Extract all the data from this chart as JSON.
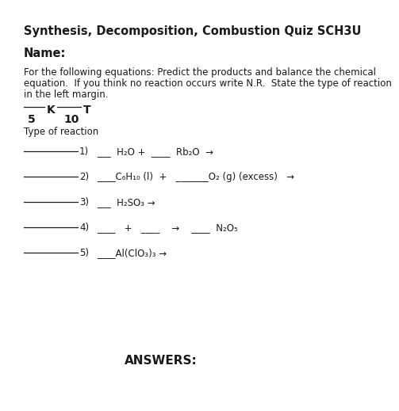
{
  "title": "Synthesis, Decomposition, Combustion Quiz SCH3U",
  "name_label": "Name:",
  "instructions_line1": "For the following equations: Predict the products and balance the chemical",
  "instructions_line2": "equation.  If you think no reaction occurs write N.R.  State the type of reaction",
  "instructions_line3": "in the left margin.",
  "scoring_K": "K",
  "scoring_T": "T",
  "scoring_val_K": "5",
  "scoring_val_T": "10",
  "type_of_reaction": "Type of reaction",
  "q1_num": "1)",
  "q1_eq": "___  H₂O +  ____  Rb₂O  →",
  "q2_num": "2)",
  "q2_eq": "____C₆H₁₀ (l)  +   _______O₂ (g) (excess)   →",
  "q3_num": "3)",
  "q3_eq": "___  H₂SO₃ →",
  "q4_num": "4)",
  "q4_eq": "____   +   ____    →    ____  N₂O₅",
  "q5_num": "5)",
  "q5_eq": "____Al(ClO₃)₃ →",
  "answers_label": "ANSWERS:",
  "bg_color": "#ffffff",
  "text_color": "#1a1a1a",
  "line_color": "#1a1a1a"
}
